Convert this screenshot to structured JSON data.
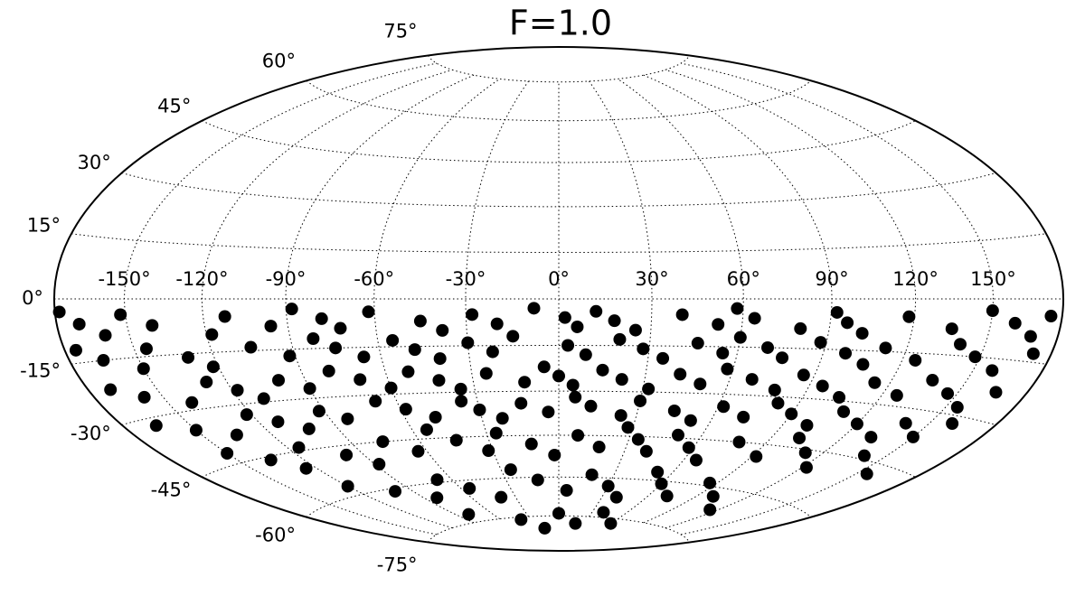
{
  "chart_data": {
    "type": "scatter",
    "projection": "hammer",
    "title": "F=1.0",
    "color": "#000000",
    "grid": true,
    "xlim": [
      -180,
      180
    ],
    "ylim": [
      -90,
      90
    ],
    "xticks": [
      {
        "value": -150,
        "label": "-150°"
      },
      {
        "value": -120,
        "label": "-120°"
      },
      {
        "value": -90,
        "label": "-90°"
      },
      {
        "value": -60,
        "label": "-60°"
      },
      {
        "value": -30,
        "label": "-30°"
      },
      {
        "value": 0,
        "label": "0°"
      },
      {
        "value": 30,
        "label": "30°"
      },
      {
        "value": 60,
        "label": "60°"
      },
      {
        "value": 90,
        "label": "90°"
      },
      {
        "value": 120,
        "label": "120°"
      },
      {
        "value": 150,
        "label": "150°"
      }
    ],
    "yticks": [
      {
        "value": -75,
        "label": "-75°"
      },
      {
        "value": -60,
        "label": "-60°"
      },
      {
        "value": -45,
        "label": "-45°"
      },
      {
        "value": -30,
        "label": "-30°"
      },
      {
        "value": -15,
        "label": "-15°"
      },
      {
        "value": 0,
        "label": "0°"
      },
      {
        "value": 15,
        "label": "15°"
      },
      {
        "value": 30,
        "label": "30°"
      },
      {
        "value": 45,
        "label": "45°"
      },
      {
        "value": 60,
        "label": "60°"
      },
      {
        "value": 75,
        "label": "75°"
      }
    ],
    "x": [
      -178,
      -170,
      -160,
      -152,
      -140,
      -118,
      -112,
      -96,
      -88,
      -78,
      -72,
      -62,
      -45,
      -38,
      -28,
      -20,
      -8,
      2,
      6,
      12,
      18,
      25,
      40,
      52,
      58,
      64,
      80,
      92,
      96,
      102,
      118,
      135,
      150,
      160,
      168,
      175,
      -175,
      -165,
      -150,
      -145,
      -130,
      -122,
      -105,
      -92,
      -82,
      -75,
      -66,
      -55,
      -48,
      -40,
      -30,
      -22,
      -15,
      3,
      9,
      20,
      28,
      35,
      46,
      55,
      60,
      70,
      76,
      88,
      98,
      106,
      112,
      125,
      140,
      148,
      158,
      172,
      -170,
      -158,
      -140,
      -128,
      -118,
      -110,
      -100,
      -90,
      -80,
      -70,
      -60,
      -52,
      -42,
      -35,
      -25,
      -12,
      -5,
      0,
      5,
      15,
      22,
      32,
      42,
      50,
      58,
      68,
      78,
      86,
      95,
      104,
      114,
      126,
      136,
      146,
      155,
      166,
      -165,
      -150,
      -135,
      -122,
      -112,
      -102,
      -92,
      -83,
      -68,
      -58,
      -48,
      -36,
      -30,
      -22,
      -14,
      -4,
      6,
      12,
      24,
      30,
      44,
      52,
      62,
      72,
      82,
      90,
      100,
      110,
      120,
      132,
      140,
      150,
      160,
      -150,
      -135,
      -125,
      -115,
      -98,
      -88,
      -76,
      -64,
      -54,
      -44,
      -32,
      -26,
      -12,
      -2,
      8,
      18,
      28,
      34,
      40,
      50,
      58,
      66,
      78,
      92,
      102,
      112,
      122,
      140,
      155,
      -120,
      -100,
      -82,
      -68,
      -55,
      -40,
      -25,
      -12,
      5,
      18,
      30,
      40,
      52,
      60,
      72,
      86,
      100,
      115,
      -80,
      -40,
      -20,
      0,
      20,
      40,
      60
    ],
    "values": [
      -3,
      -6,
      -9,
      -4,
      -7,
      -10,
      -5,
      -8,
      -3,
      -6,
      -9,
      -4,
      -7,
      -10,
      -5,
      -8,
      -3,
      -6,
      -9,
      -4,
      -7,
      -10,
      -5,
      -8,
      -3,
      -6,
      -9,
      -4,
      -7,
      -10,
      -5,
      -8,
      -3,
      -6,
      -9,
      -4,
      -12,
      -15,
      -18,
      -13,
      -16,
      -19,
      -14,
      -17,
      -12,
      -15,
      -18,
      -13,
      -16,
      -19,
      -14,
      -17,
      -12,
      -15,
      -18,
      -13,
      -16,
      -19,
      -14,
      -17,
      -12,
      -15,
      -18,
      -13,
      -16,
      -19,
      -14,
      -17,
      -12,
      -15,
      -18,
      -13,
      -22,
      -25,
      -28,
      -23,
      -26,
      -29,
      -24,
      -27,
      -22,
      -25,
      -28,
      -23,
      -26,
      -29,
      -24,
      -27,
      -22,
      -25,
      -28,
      -23,
      -26,
      -29,
      -24,
      -27,
      -22,
      -25,
      -28,
      -23,
      -26,
      -29,
      -24,
      -27,
      -22,
      -25,
      -28,
      -23,
      -32,
      -35,
      -38,
      -33,
      -36,
      -39,
      -34,
      -37,
      -32,
      -35,
      -38,
      -33,
      -36,
      -39,
      -34,
      -37,
      -32,
      -35,
      -38,
      -33,
      -36,
      -39,
      -34,
      -37,
      -32,
      -35,
      -38,
      -33,
      -36,
      -39,
      -34,
      -37,
      -32,
      -42,
      -46,
      -50,
      -44,
      -48,
      -52,
      -45,
      -49,
      -42,
      -46,
      -50,
      -44,
      -48,
      -52,
      -45,
      -49,
      -42,
      -46,
      -50,
      -44,
      -48,
      -52,
      -45,
      -49,
      -42,
      -46,
      -50,
      -44,
      -48,
      -57,
      -61,
      -65,
      -59,
      -63,
      -67,
      -57,
      -61,
      -65,
      -59,
      -63,
      -67,
      -57,
      -61,
      -65,
      -59,
      -63,
      -67,
      -72,
      -76,
      -80,
      -74,
      -78,
      -73,
      -77
    ]
  }
}
